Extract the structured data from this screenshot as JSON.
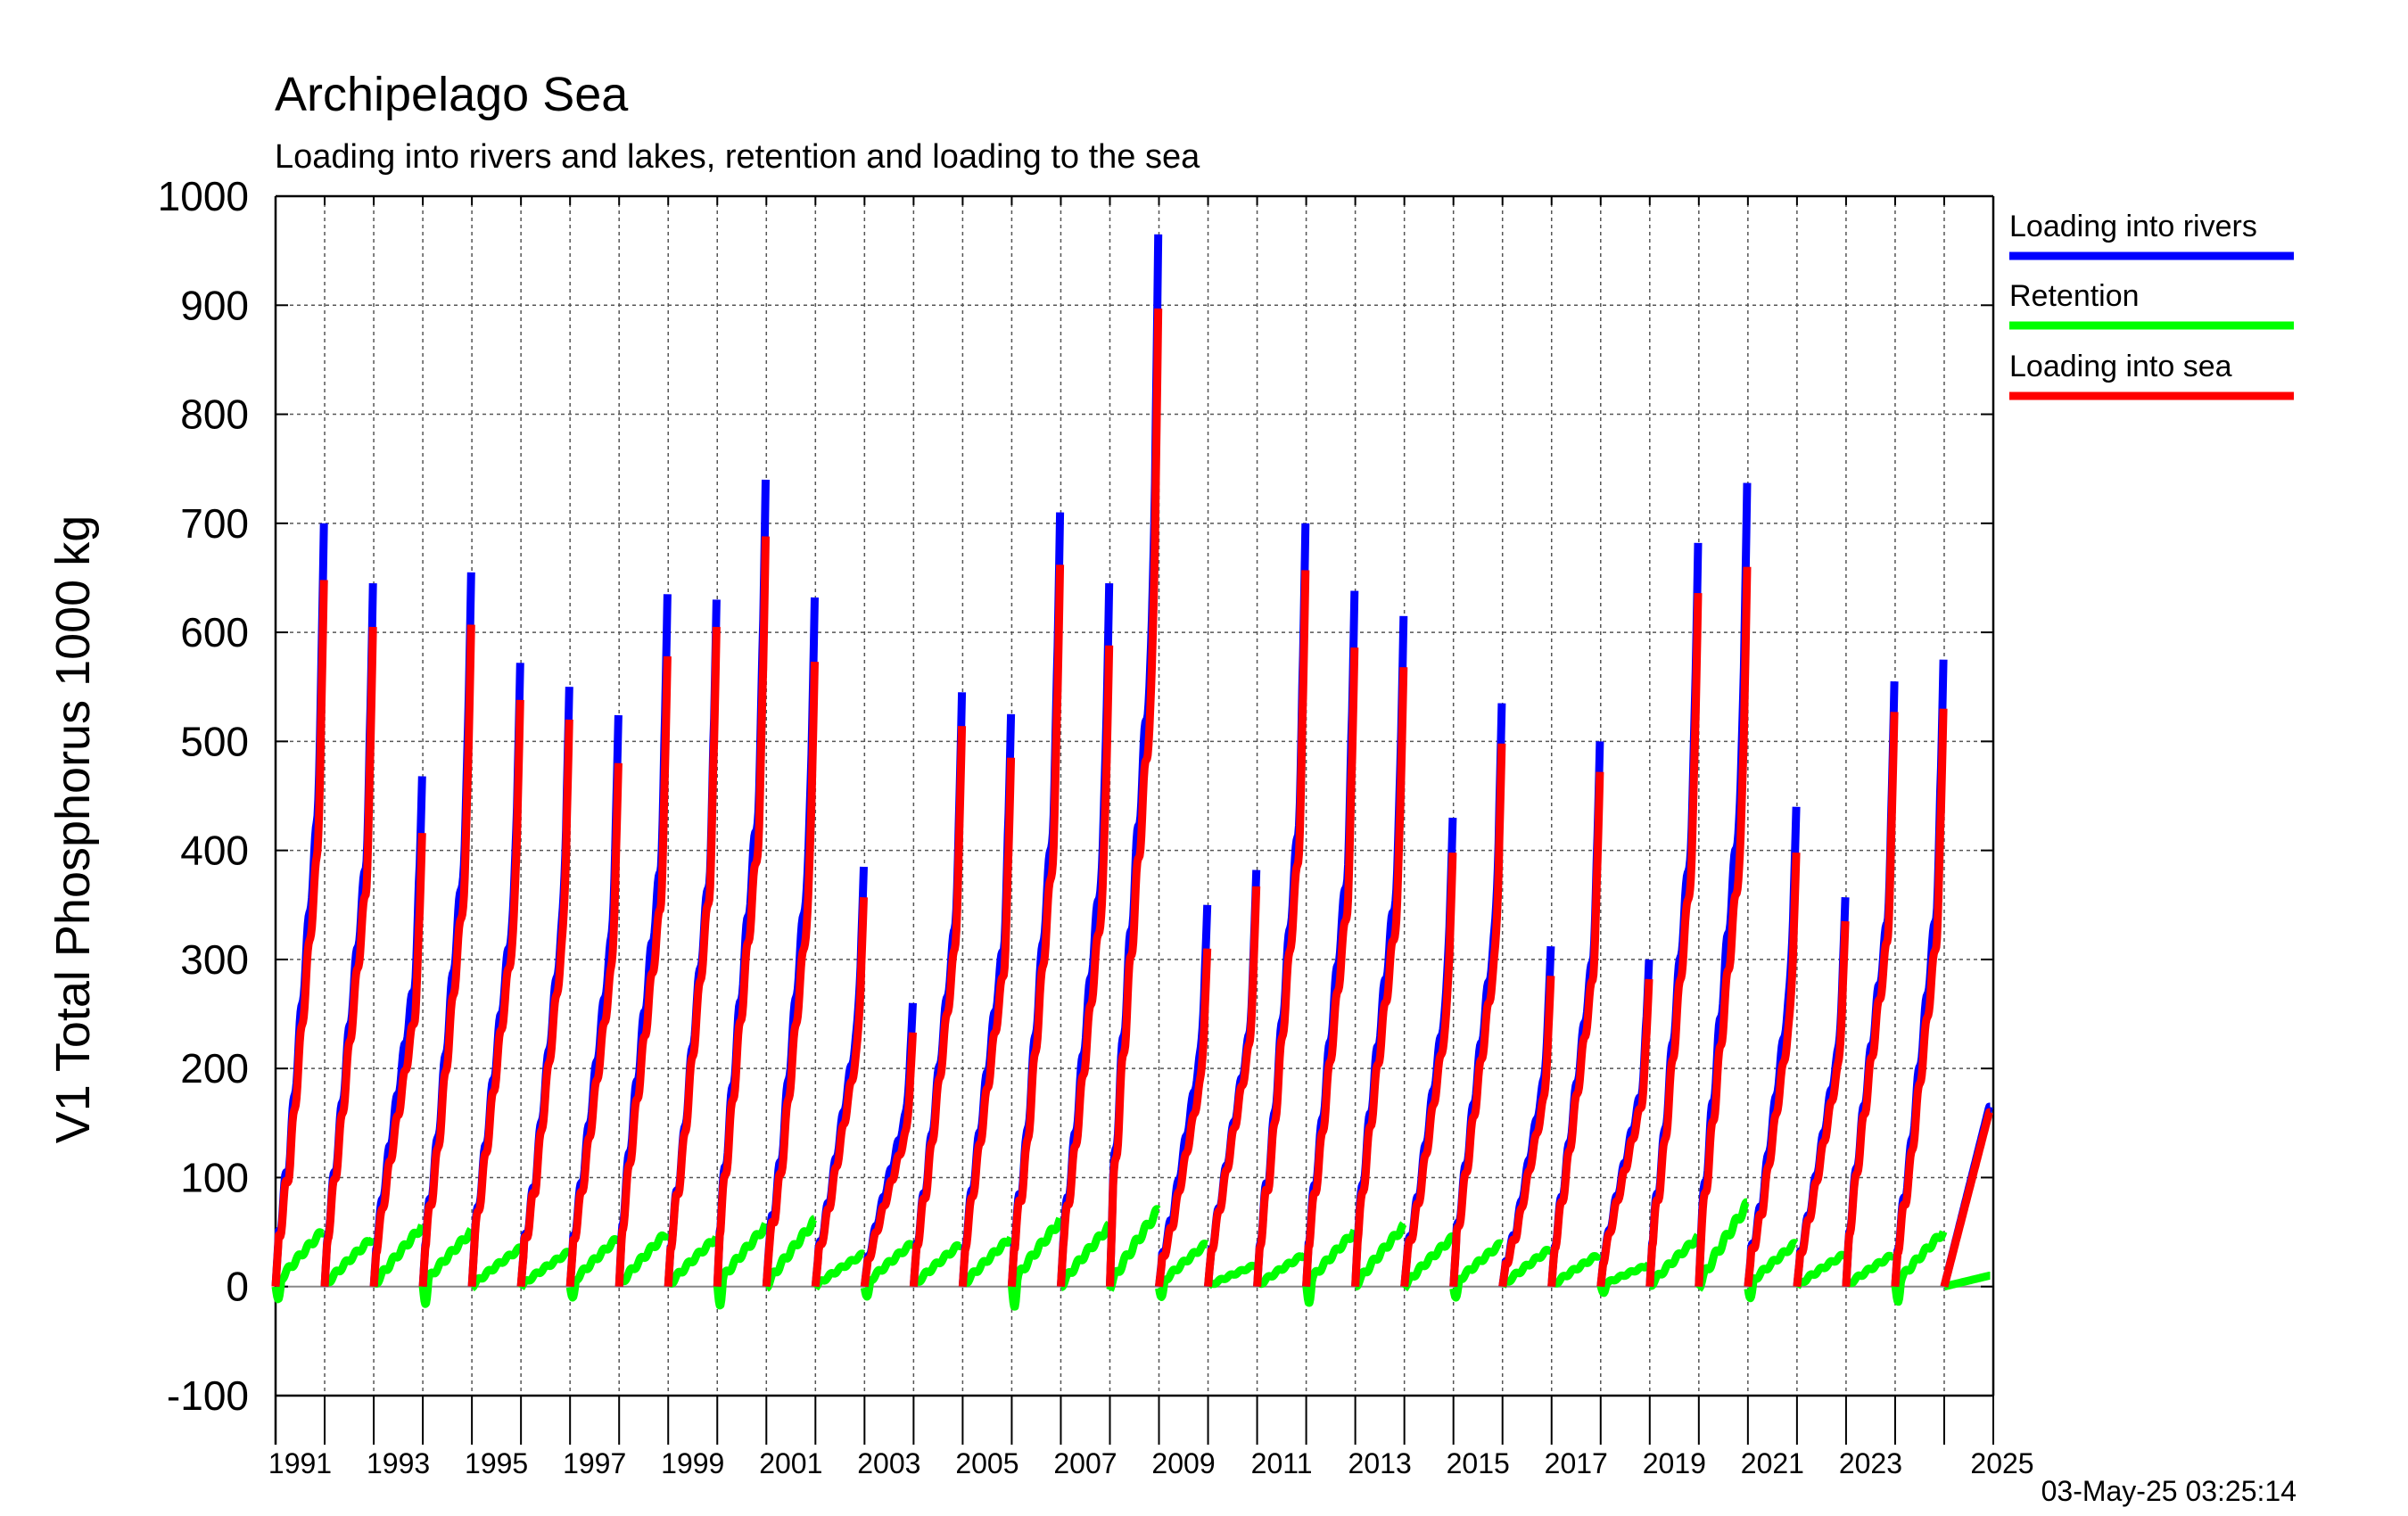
{
  "chart_data": {
    "type": "line",
    "title": "Archipelago Sea",
    "subtitle": "Loading into rivers and lakes, retention and loading to the sea",
    "ylabel": "V1 Total Phosphorus 1000 kg",
    "xlabel": "",
    "ylim": [
      -100,
      1000
    ],
    "xlim": [
      1990,
      2025
    ],
    "grid": true,
    "legend_position": "right",
    "timestamp": "03-May-25 03:25:14",
    "y_ticks": [
      -100,
      0,
      100,
      200,
      300,
      400,
      500,
      600,
      700,
      800,
      900,
      1000
    ],
    "x_tick_labels": [
      "1991",
      "1993",
      "1995",
      "1997",
      "1999",
      "2001",
      "2003",
      "2005",
      "2007",
      "2009",
      "2011",
      "2013",
      "2015",
      "2017",
      "2019",
      "2021",
      "2023",
      "2025"
    ],
    "colors": {
      "rivers": "#0000ff",
      "retention": "#00ff00",
      "sea": "#ff0000"
    },
    "series": [
      {
        "name": "Loading into rivers",
        "key": "rivers",
        "annual_totals": [
          700,
          645,
          468,
          655,
          572,
          550,
          524,
          635,
          630,
          740,
          632,
          385,
          260,
          545,
          525,
          710,
          645,
          965,
          350,
          382,
          700,
          638,
          615,
          430,
          535,
          312,
          500,
          300,
          682,
          737,
          440,
          357,
          555,
          575,
          165
        ]
      },
      {
        "name": "Retention",
        "key": "retention",
        "annual_totals": [
          52,
          45,
          55,
          50,
          35,
          32,
          45,
          50,
          45,
          55,
          60,
          30,
          40,
          40,
          45,
          60,
          55,
          70,
          40,
          20,
          30,
          50,
          55,
          45,
          40,
          35,
          30,
          20,
          45,
          75,
          40,
          30,
          30,
          50,
          10
        ]
      },
      {
        "name": "Loading into sea",
        "key": "sea",
        "annual_totals": [
          648,
          605,
          416,
          607,
          538,
          520,
          480,
          578,
          605,
          688,
          573,
          357,
          233,
          514,
          485,
          662,
          588,
          897,
          310,
          367,
          657,
          586,
          568,
          398,
          498,
          285,
          472,
          282,
          636,
          660,
          398,
          335,
          527,
          530,
          160
        ]
      }
    ]
  },
  "legend": {
    "rivers_label": "Loading into rivers",
    "retention_label": "Retention",
    "sea_label": "Loading into sea"
  }
}
